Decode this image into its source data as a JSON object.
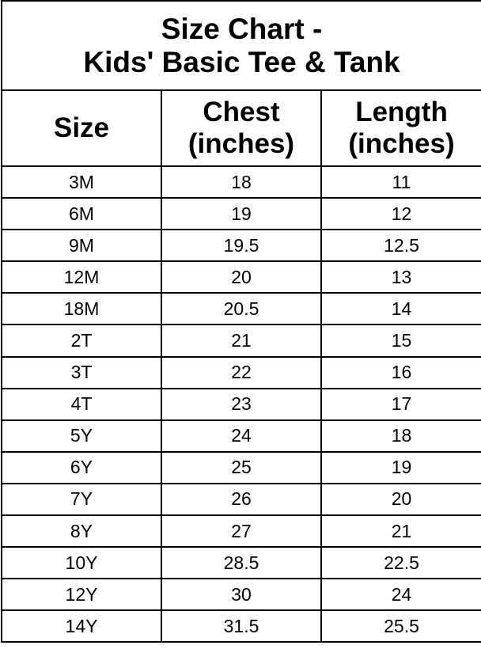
{
  "title": {
    "line1": "Size Chart -",
    "line2": "Kids' Basic Tee & Tank"
  },
  "headers": [
    {
      "line1": "Size",
      "line2": ""
    },
    {
      "line1": "Chest",
      "line2": "(inches)"
    },
    {
      "line1": "Length",
      "line2": "(inches)"
    }
  ],
  "rows": [
    [
      "3M",
      "18",
      "11"
    ],
    [
      "6M",
      "19",
      "12"
    ],
    [
      "9M",
      "19.5",
      "12.5"
    ],
    [
      "12M",
      "20",
      "13"
    ],
    [
      "18M",
      "20.5",
      "14"
    ],
    [
      "2T",
      "21",
      "15"
    ],
    [
      "3T",
      "22",
      "16"
    ],
    [
      "4T",
      "23",
      "17"
    ],
    [
      "5Y",
      "24",
      "18"
    ],
    [
      "6Y",
      "25",
      "19"
    ],
    [
      "7Y",
      "26",
      "20"
    ],
    [
      "8Y",
      "27",
      "21"
    ],
    [
      "10Y",
      "28.5",
      "22.5"
    ],
    [
      "12Y",
      "30",
      "24"
    ],
    [
      "14Y",
      "31.5",
      "25.5"
    ]
  ]
}
